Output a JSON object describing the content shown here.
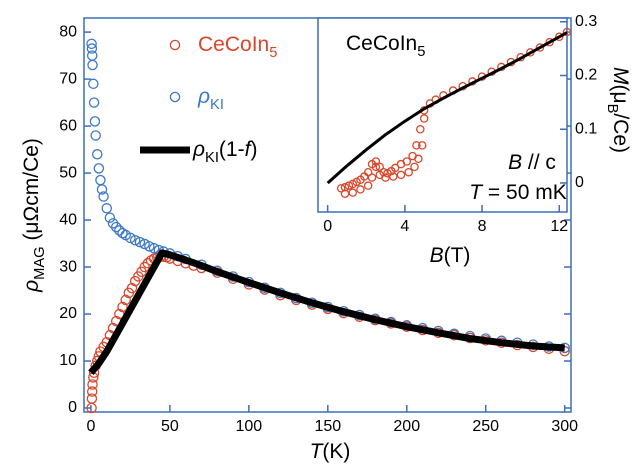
{
  "chart_data": [
    {
      "type": "scatter",
      "xlabel_parts": [
        {
          "text": "T",
          "italic": true
        },
        {
          "text": "(K)"
        }
      ],
      "ylabel_parts": [
        {
          "text": "ρ",
          "italic": true
        },
        {
          "text": "MAG",
          "sub": true
        },
        {
          "text": " (μΩcm/Ce)"
        }
      ],
      "xlim": [
        -4.4,
        304
      ],
      "ylim": [
        -0.85,
        83
      ],
      "xticks": [
        0,
        50,
        100,
        150,
        200,
        250,
        300
      ],
      "yticks": [
        0,
        10,
        20,
        30,
        40,
        50,
        60,
        70,
        80
      ],
      "axis_color": "#3b6fb8",
      "series": [
        {
          "name_parts": [
            {
              "text": "CeCoIn"
            },
            {
              "text": "5",
              "sub": true
            }
          ],
          "color": "#d9472b",
          "style": "circle",
          "x": [
            0.4,
            0.6,
            0.8,
            1,
            1.5,
            2,
            3,
            4,
            5,
            6,
            8,
            10,
            12,
            14,
            16,
            18,
            20,
            22,
            24,
            26,
            28,
            30,
            32,
            34,
            36,
            38,
            40,
            42,
            44,
            46,
            48,
            50,
            55,
            60,
            65,
            70,
            80,
            90,
            100,
            110,
            120,
            130,
            140,
            150,
            160,
            170,
            180,
            190,
            200,
            210,
            220,
            230,
            240,
            250,
            260,
            270,
            280,
            290,
            300
          ],
          "values": [
            0,
            2,
            3.5,
            5,
            6.5,
            7.5,
            9,
            10,
            11,
            12,
            13,
            14,
            15.5,
            17,
            18.5,
            20,
            21.5,
            23,
            24.5,
            25.5,
            27,
            28,
            29,
            30,
            30.8,
            31.4,
            31.8,
            32,
            32.2,
            32.2,
            32.1,
            31.8,
            31.3,
            30.8,
            30.3,
            29.8,
            28.8,
            27.5,
            26.3,
            25.2,
            24,
            23,
            22,
            21.1,
            20.2,
            19.4,
            18.7,
            18,
            17.3,
            16.6,
            16,
            15.5,
            14.9,
            14.4,
            13.9,
            13.4,
            13,
            12.6,
            12.1
          ]
        },
        {
          "name_parts": [
            {
              "text": "ρ",
              "italic": true
            },
            {
              "text": "KI",
              "sub": true
            }
          ],
          "color": "#3b78c9",
          "style": "circle",
          "x": [
            0.4,
            0.6,
            0.8,
            1,
            1.5,
            2,
            2.5,
            3,
            4,
            5,
            6,
            7,
            8,
            10,
            12,
            14,
            16,
            18,
            20,
            22,
            25,
            28,
            31,
            34,
            37,
            40,
            43,
            46,
            50,
            55,
            60,
            70,
            80,
            90,
            100,
            110,
            120,
            130,
            140,
            150,
            160,
            170,
            180,
            190,
            200,
            210,
            220,
            230,
            240,
            250,
            260,
            270,
            280,
            290,
            300
          ],
          "values": [
            77.5,
            76.5,
            75,
            73,
            69,
            65,
            61,
            58,
            54,
            51,
            48.5,
            46.5,
            45,
            42.5,
            40.5,
            39.3,
            38.5,
            37.8,
            37.2,
            36.8,
            36.2,
            35.7,
            35.3,
            34.9,
            34.4,
            34,
            33.6,
            33.3,
            32.9,
            32.3,
            31.7,
            30.5,
            29.2,
            28,
            26.8,
            25.6,
            24.5,
            23.4,
            22.4,
            21.5,
            20.6,
            19.8,
            19,
            18.3,
            17.6,
            17,
            16.4,
            15.8,
            15.3,
            14.8,
            14.3,
            13.9,
            13.5,
            13.1,
            12.8
          ]
        },
        {
          "name_parts": [
            {
              "text": "ρ",
              "italic": true
            },
            {
              "text": "KI",
              "sub": true
            },
            {
              "text": "(1-"
            },
            {
              "text": "f",
              "italic": true
            },
            {
              "text": ")"
            }
          ],
          "color": "#000000",
          "style": "line",
          "x": [
            0,
            5,
            10,
            15,
            20,
            25,
            30,
            35,
            40,
            45,
            50,
            60,
            70,
            80,
            100,
            120,
            140,
            160,
            180,
            200,
            220,
            240,
            260,
            280,
            300
          ],
          "values": [
            7.5,
            9.5,
            12,
            15,
            18,
            21,
            24,
            27,
            30,
            33,
            32.6,
            31.5,
            30.3,
            29,
            26.7,
            24.5,
            22.4,
            20.5,
            18.8,
            17.3,
            16,
            14.8,
            13.9,
            13.2,
            12.8
          ]
        }
      ]
    },
    {
      "type": "scatter",
      "title_parts": [
        {
          "text": "CeCoIn"
        },
        {
          "text": "5",
          "sub": true
        }
      ],
      "annotations": [
        [
          {
            "text": "B",
            "italic": true
          },
          {
            "text": " // c"
          }
        ],
        [
          {
            "text": "T",
            "italic": true
          },
          {
            "text": " = 50 mK"
          }
        ]
      ],
      "xlabel_parts": [
        {
          "text": "B",
          "italic": true
        },
        {
          "text": "(T)"
        }
      ],
      "ylabel_parts": [
        {
          "text": "M",
          "italic": true
        },
        {
          "text": "(μ"
        },
        {
          "text": "B",
          "sub": true
        },
        {
          "text": "/Ce)"
        }
      ],
      "xlim": [
        -0.5,
        12.4
      ],
      "ylim": [
        -0.054,
        0.307
      ],
      "xticks": [
        0,
        4,
        8,
        12
      ],
      "yticks": [
        0,
        0.1,
        0.2,
        0.3
      ],
      "axis_color": "#3b6fb8",
      "series": [
        {
          "color": "#d9472b",
          "style": "circle",
          "x": [
            0.7,
            0.9,
            1.1,
            1.3,
            1.5,
            1.7,
            1.9,
            2.1,
            2.3,
            2.5,
            2.7,
            2.9,
            3.1,
            3.3,
            3.5,
            3.8,
            4.1,
            4.4,
            4.6,
            4.8,
            5.0,
            5.3,
            5.6,
            6,
            6.5,
            7,
            7.5,
            8,
            8.5,
            9,
            9.5,
            10,
            10.5,
            11,
            11.5,
            12,
            12.4,
            0.9,
            1.3,
            1.7,
            2.1,
            2.3,
            2.5,
            2.7,
            3.0,
            3.4,
            3.8,
            4.2,
            4.5,
            4.7,
            4.9,
            5.0
          ],
          "values": [
            -0.01,
            -0.008,
            -0.005,
            -0.002,
            0.002,
            0.006,
            0.012,
            0.02,
            0.035,
            0.04,
            0.03,
            0.02,
            0.018,
            0.022,
            0.028,
            0.035,
            0.04,
            0.05,
            0.07,
            0.1,
            0.135,
            0.148,
            0.155,
            0.163,
            0.172,
            0.18,
            0.189,
            0.198,
            0.207,
            0.216,
            0.225,
            0.234,
            0.243,
            0.252,
            0.262,
            0.272,
            0.281,
            -0.02,
            -0.018,
            -0.012,
            -0.005,
            0.01,
            0.03,
            0.015,
            0.01,
            0.012,
            0.015,
            0.02,
            0.03,
            0.045,
            0.07,
            0.12
          ]
        },
        {
          "color": "#000000",
          "style": "line",
          "x": [
            0,
            1,
            2,
            3,
            4,
            5,
            6,
            7,
            8,
            9,
            10,
            11,
            12,
            12.4
          ],
          "values": [
            0,
            0.032,
            0.062,
            0.09,
            0.115,
            0.138,
            0.158,
            0.177,
            0.195,
            0.213,
            0.232,
            0.252,
            0.272,
            0.28
          ]
        }
      ]
    }
  ]
}
